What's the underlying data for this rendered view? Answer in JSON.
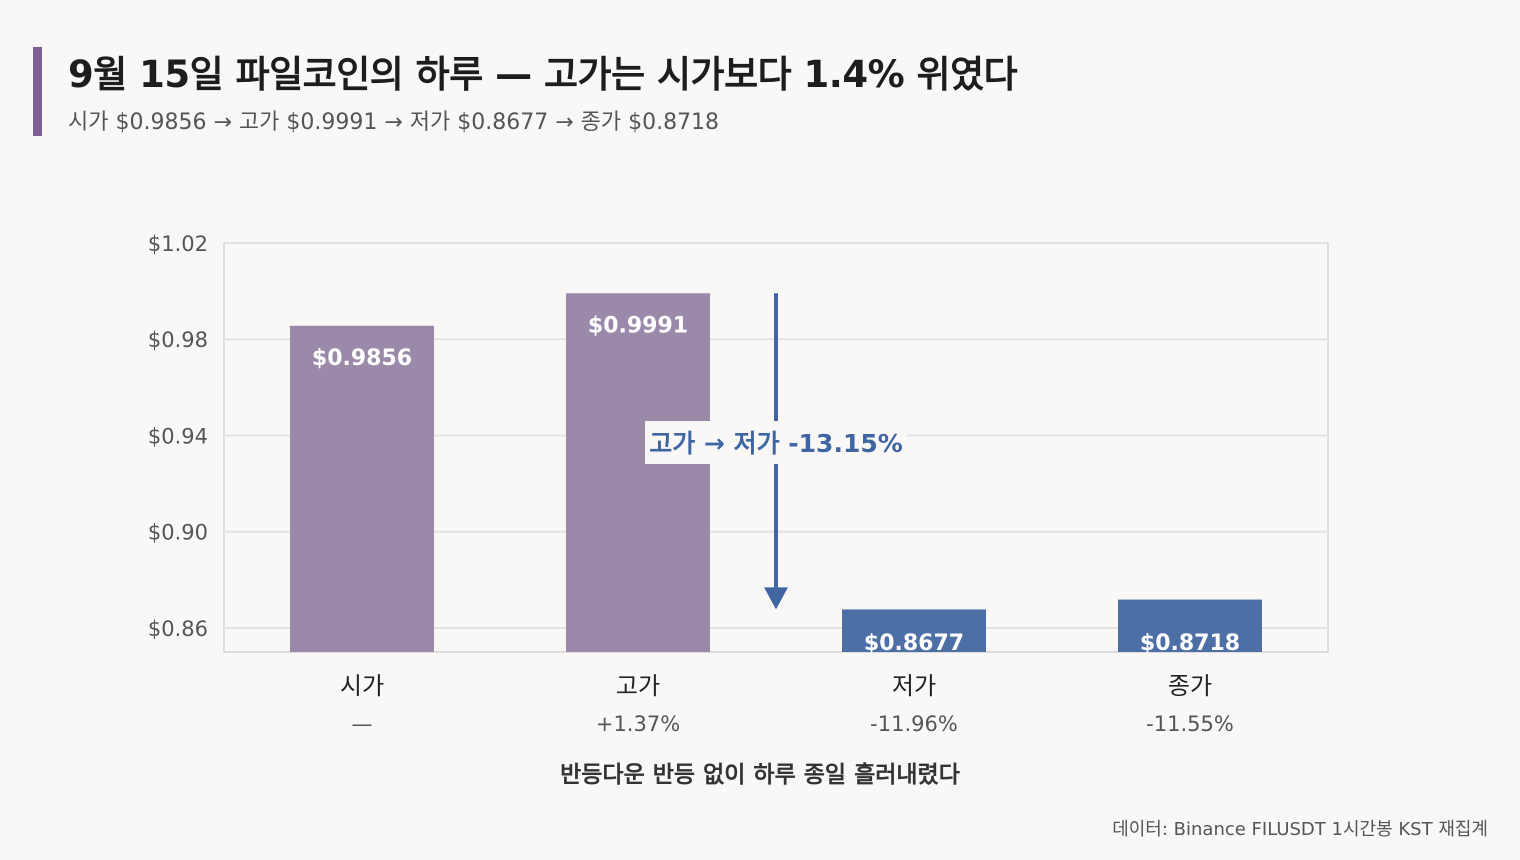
{
  "header": {
    "title": "9월 15일 파일코인의 하루 — 고가는 시가보다 1.4% 위였다",
    "subtitle": "시가 $0.9856 → 고가 $0.9991 → 저가 $0.8677 → 종가 $0.8718"
  },
  "chart_data": {
    "type": "bar",
    "categories": [
      "시가",
      "고가",
      "저가",
      "종가"
    ],
    "values": [
      0.9856,
      0.9991,
      0.8677,
      0.8718
    ],
    "value_labels": [
      "$0.9856",
      "$0.9991",
      "$0.8677",
      "$0.8718"
    ],
    "change_labels": [
      "—",
      "+1.37%",
      "-11.96%",
      "-11.55%"
    ],
    "bar_colors": [
      "#9a89a8",
      "#9a89a8",
      "#4c6fa5",
      "#4c6fa5"
    ],
    "ylim": [
      0.85,
      1.02
    ],
    "yticks": [
      0.86,
      0.9,
      0.94,
      0.98,
      1.02
    ],
    "ytick_labels": [
      "$0.86",
      "$0.90",
      "$0.94",
      "$0.98",
      "$1.02"
    ],
    "grid": true,
    "xlabel": "반등다운 반등 없이 하루 종일 흘러내렸다",
    "annotation": {
      "text": "고가 → 저가 -13.15%",
      "from_value": 0.9991,
      "to_value": 0.8677,
      "color": "#3f66a3"
    }
  },
  "footer": {
    "source": "데이터: Binance FILUSDT 1시간봉 KST 재집계"
  }
}
